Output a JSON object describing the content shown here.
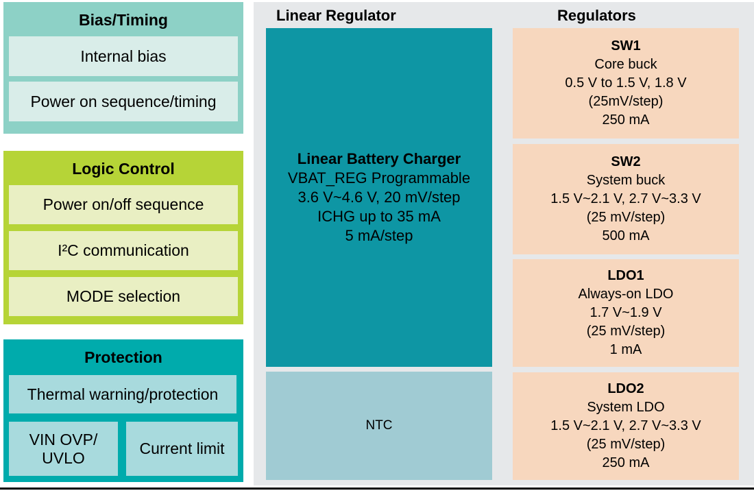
{
  "diagram": {
    "left_column": {
      "blocks": [
        {
          "title": "Bias/Timing",
          "items": [
            "Internal bias",
            "Power on sequence/timing"
          ]
        },
        {
          "title": "Logic Control",
          "items": [
            "Power on/off sequence",
            "I²C communication",
            "MODE selection"
          ]
        },
        {
          "title": "Protection",
          "items": [
            "Thermal warning/protection",
            "VIN OVP/\nUVLO",
            "Current limit"
          ]
        }
      ]
    },
    "linear_regulator": {
      "title": "Linear Regulator",
      "charger": {
        "heading": "Linear Battery Charger",
        "lines": [
          "VBAT_REG Programmable",
          "3.6 V~4.6 V, 20 mV/step",
          "ICHG up to 35 mA",
          "5 mA/step"
        ]
      },
      "ntc_label": "NTC"
    },
    "regulators": {
      "title": "Regulators",
      "blocks": [
        {
          "name": "SW1",
          "lines": [
            "Core buck",
            "0.5 V to 1.5 V, 1.8 V",
            "(25mV/step)",
            "250 mA"
          ]
        },
        {
          "name": "SW2",
          "lines": [
            "System buck",
            "1.5 V~2.1 V, 2.7 V~3.3 V",
            "(25 mV/step)",
            "500 mA"
          ]
        },
        {
          "name": "LDO1",
          "lines": [
            "Always-on LDO",
            "1.7 V~1.9 V",
            "(25 mV/step)",
            "1 mA"
          ]
        },
        {
          "name": "LDO2",
          "lines": [
            "System LDO",
            "1.5 V~2.1 V, 2.7 V~3.3 V",
            "(25 mV/step)",
            "250 mA"
          ]
        }
      ]
    },
    "colors": {
      "bias_block_bg": "#8DD1C6",
      "bias_item_bg": "#D9EDE9",
      "logic_block_bg": "#B6D437",
      "logic_item_bg": "#E9EFC3",
      "protection_block_bg": "#00ABAC",
      "protection_item_bg": "#A8DADD",
      "panel_bg": "#E6E8EA",
      "charger_block_bg": "#0E96A4",
      "ntc_block_bg": "#A0CBD3",
      "regulator_block_bg": "#F7D7BE",
      "divider": "#000000"
    }
  }
}
